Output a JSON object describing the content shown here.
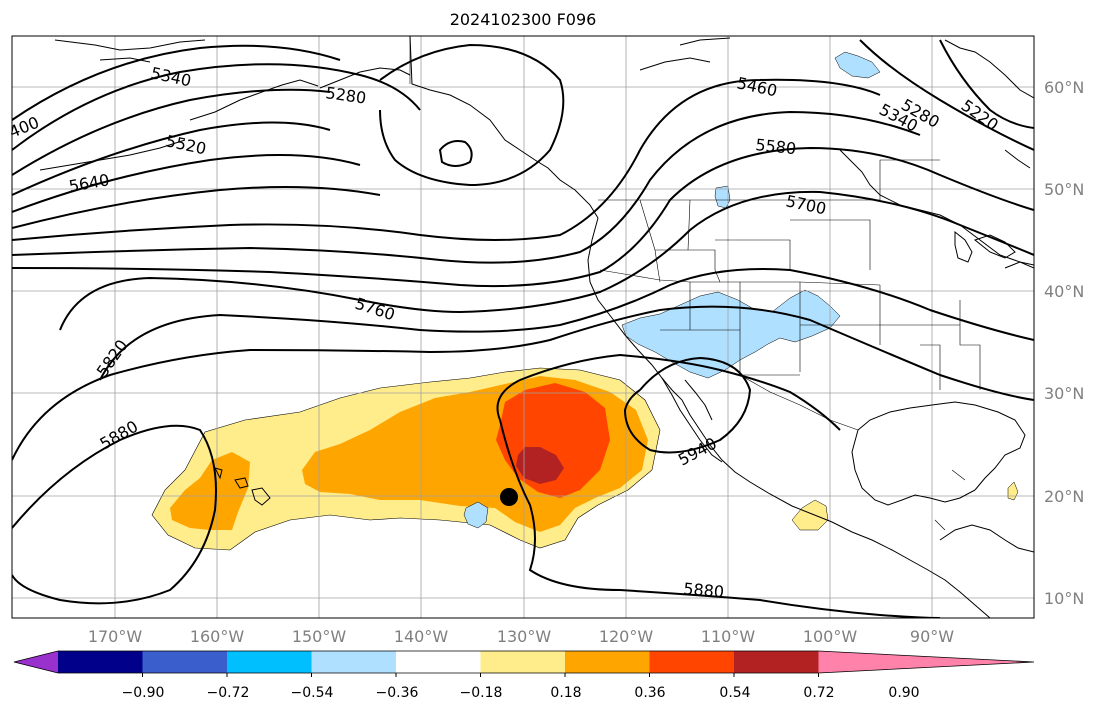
{
  "title": "2024102300 F096",
  "lat_labels": [
    "60°N",
    "50°N",
    "40°N",
    "30°N",
    "20°N",
    "10°N"
  ],
  "lon_labels": [
    "170°W",
    "160°W",
    "150°W",
    "140°W",
    "130°W",
    "120°W",
    "110°W",
    "100°W",
    "90°W"
  ],
  "contour_labels": [
    "5220",
    "5280",
    "5280",
    "5340",
    "5340",
    "400",
    "5460",
    "5520",
    "5580",
    "5640",
    "5700",
    "5760",
    "5820",
    "5880",
    "5880",
    "5940"
  ],
  "colorbar": {
    "colors": [
      "#9932cc",
      "#00008b",
      "#3a5fcd",
      "#00bfff",
      "#b0e0ff",
      "#ffffff",
      "#ffec8b",
      "#ffa500",
      "#ff4500",
      "#b22222",
      "#ff82ab"
    ],
    "tick_labels": [
      "−0.90",
      "−0.72",
      "−0.54",
      "−0.36",
      "−0.18",
      "0.18",
      "0.36",
      "0.54",
      "0.72",
      "0.90"
    ]
  },
  "map_fill_colors": {
    "land_outline": "#000000",
    "shade_yellow": "#ffec8b",
    "shade_orange": "#ffa500",
    "shade_redorange": "#ff4500",
    "shade_darkred": "#b22222",
    "shade_lightblue": "#b0e0ff",
    "gridline": "#a0a0a0"
  },
  "marker": "black-dot"
}
